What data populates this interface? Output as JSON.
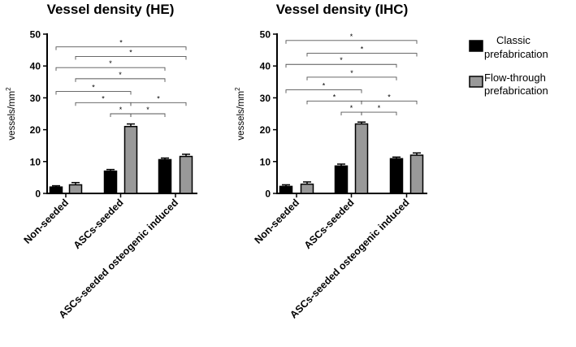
{
  "chart_data": [
    {
      "type": "bar",
      "title": "Vessel density (HE)",
      "ylabel": "vessels/mm",
      "ylabel_superscript": "2",
      "ylim": [
        0,
        50
      ],
      "yticks": [
        0,
        10,
        20,
        30,
        40,
        50
      ],
      "categories": [
        "Non-seeded",
        "ASCs-seeded",
        "ASCs-seeded osteogenic induced"
      ],
      "series": [
        {
          "name": "Classic prefabrication",
          "color": "#000000",
          "values": [
            2.0,
            7.0,
            10.6
          ],
          "errors": [
            0.4,
            0.5,
            0.5
          ]
        },
        {
          "name": "Flow-through prefabrication",
          "color": "#999999",
          "values": [
            2.7,
            21.0,
            11.6
          ],
          "errors": [
            0.7,
            0.8,
            0.7
          ]
        }
      ],
      "significance": [
        {
          "from": [
            0,
            0
          ],
          "to": [
            2,
            1
          ],
          "y": 46,
          "label": "*"
        },
        {
          "from": [
            0,
            1
          ],
          "to": [
            2,
            1
          ],
          "y": 43,
          "label": "*"
        },
        {
          "from": [
            0,
            0
          ],
          "to": [
            2,
            0
          ],
          "y": 39.5,
          "label": "*"
        },
        {
          "from": [
            0,
            1
          ],
          "to": [
            2,
            0
          ],
          "y": 36,
          "label": "*"
        },
        {
          "from": [
            0,
            0
          ],
          "to": [
            1,
            1
          ],
          "y": 32,
          "label": "*"
        },
        {
          "from": [
            0,
            1
          ],
          "to": [
            1,
            1
          ],
          "y": 28.5,
          "label": "*"
        },
        {
          "from": [
            1,
            0
          ],
          "to": [
            1,
            1
          ],
          "y": 25,
          "label": "*"
        },
        {
          "from": [
            1,
            1
          ],
          "to": [
            2,
            1
          ],
          "y": 28.5,
          "label": "*"
        },
        {
          "from": [
            1,
            1
          ],
          "to": [
            2,
            0
          ],
          "y": 25,
          "label": "*"
        }
      ]
    },
    {
      "type": "bar",
      "title": "Vessel density (IHC)",
      "ylabel": "vessels/mm",
      "ylabel_superscript": "2",
      "ylim": [
        0,
        50
      ],
      "yticks": [
        0,
        10,
        20,
        30,
        40,
        50
      ],
      "categories": [
        "Non-seeded",
        "ASCs-seeded",
        "ASCs-seeded osteogenic induced"
      ],
      "series": [
        {
          "name": "Classic prefabrication",
          "color": "#000000",
          "values": [
            2.2,
            8.6,
            10.9
          ],
          "errors": [
            0.5,
            0.6,
            0.5
          ]
        },
        {
          "name": "Flow-through prefabrication",
          "color": "#999999",
          "values": [
            2.9,
            21.8,
            12.0
          ],
          "errors": [
            0.7,
            0.6,
            0.7
          ]
        }
      ],
      "significance": [
        {
          "from": [
            0,
            0
          ],
          "to": [
            2,
            1
          ],
          "y": 48,
          "label": "*"
        },
        {
          "from": [
            0,
            1
          ],
          "to": [
            2,
            1
          ],
          "y": 44,
          "label": "*"
        },
        {
          "from": [
            0,
            0
          ],
          "to": [
            2,
            0
          ],
          "y": 40.5,
          "label": "*"
        },
        {
          "from": [
            0,
            1
          ],
          "to": [
            2,
            0
          ],
          "y": 36.5,
          "label": "*"
        },
        {
          "from": [
            0,
            0
          ],
          "to": [
            1,
            1
          ],
          "y": 32.5,
          "label": "*"
        },
        {
          "from": [
            0,
            1
          ],
          "to": [
            1,
            1
          ],
          "y": 29,
          "label": "*"
        },
        {
          "from": [
            1,
            0
          ],
          "to": [
            1,
            1
          ],
          "y": 25.5,
          "label": "*"
        },
        {
          "from": [
            1,
            1
          ],
          "to": [
            2,
            1
          ],
          "y": 29,
          "label": "*"
        },
        {
          "from": [
            1,
            1
          ],
          "to": [
            2,
            0
          ],
          "y": 25.5,
          "label": "*"
        }
      ]
    }
  ],
  "legend": {
    "items": [
      {
        "line1": "Classic",
        "line2": "prefabrication",
        "color": "#000000"
      },
      {
        "line1": "Flow-through",
        "line2": "prefabrication",
        "color": "#999999"
      }
    ]
  }
}
